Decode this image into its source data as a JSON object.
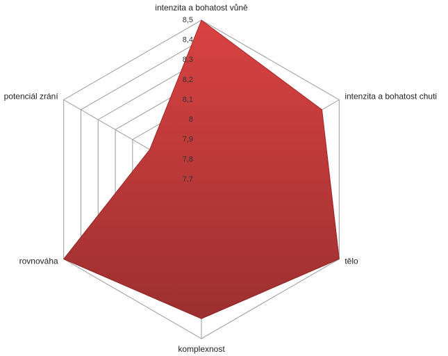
{
  "chart_data": {
    "type": "radar",
    "categories": [
      "intenzita a bohatost  vůně",
      "intenzita a bohatost  chuti",
      "tělo",
      "komplexnost",
      "rovnováha",
      "potenciál zrání"
    ],
    "values": [
      8.5,
      8.4,
      8.5,
      8.4,
      8.5,
      8.0
    ],
    "color": "#d94242",
    "rlim": [
      7.7,
      8.5
    ],
    "rticks": [
      {
        "value": 7.7,
        "label": "7,7"
      },
      {
        "value": 7.8,
        "label": "7,8"
      },
      {
        "value": 7.9,
        "label": "7,9"
      },
      8,
      {
        "value": 8.1,
        "label": "8,1"
      },
      {
        "value": 8.2,
        "label": "8,2"
      },
      {
        "value": 8.3,
        "label": "8,3"
      },
      {
        "value": 8.4,
        "label": "8,4"
      },
      {
        "value": 8.5,
        "label": "8,5"
      }
    ],
    "grid": true
  }
}
